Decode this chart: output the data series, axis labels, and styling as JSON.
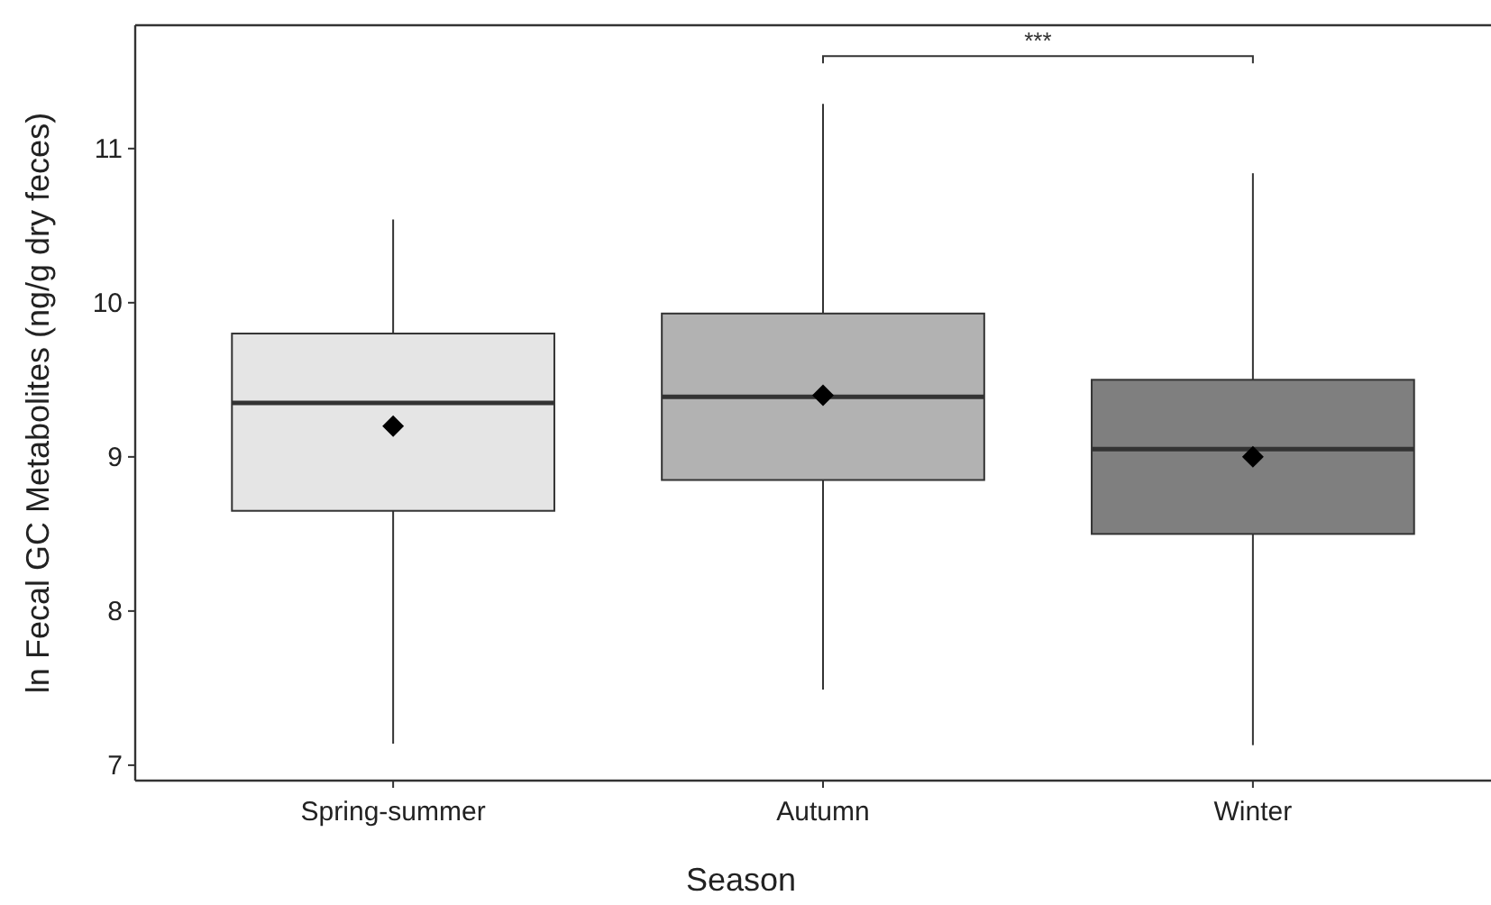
{
  "chart_data": {
    "type": "box",
    "xlabel": "Season",
    "ylabel": "ln Fecal GC Metabolites (ng/g dry feces)",
    "categories": [
      "Spring-summer",
      "Autumn",
      "Winter"
    ],
    "colors": [
      "#e5e5e5",
      "#b2b2b2",
      "#7f7f7f"
    ],
    "boxes": [
      {
        "low": 7.14,
        "q1": 8.65,
        "median": 9.35,
        "q3": 9.8,
        "high": 10.54,
        "mean": 9.2
      },
      {
        "low": 7.49,
        "q1": 8.85,
        "median": 9.39,
        "q3": 9.93,
        "high": 11.29,
        "mean": 9.4
      },
      {
        "low": 7.13,
        "q1": 8.5,
        "median": 9.05,
        "q3": 9.5,
        "high": 10.84,
        "mean": 9.0
      }
    ],
    "ylim": [
      6.9,
      11.8
    ],
    "yticks": [
      7,
      8,
      9,
      10,
      11
    ],
    "grid": false,
    "annotations": [
      "***"
    ]
  }
}
